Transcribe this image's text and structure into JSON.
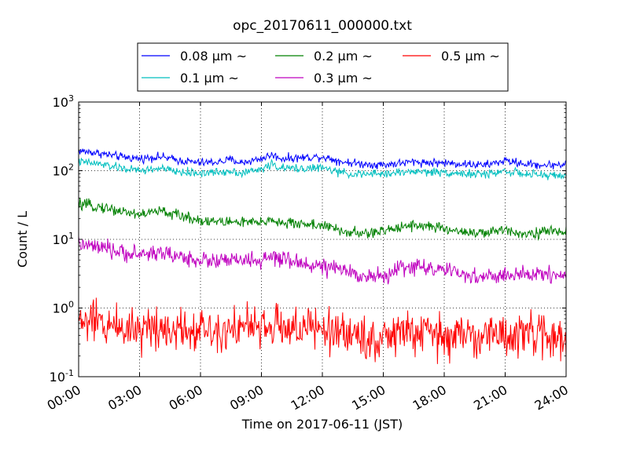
{
  "chart_data": {
    "type": "line",
    "title": "opc_20170611_000000.txt",
    "xlabel": "Time on 2017-06-11 (JST)",
    "ylabel": "Count / L",
    "x_unit": "hours",
    "xlim": [
      0,
      24
    ],
    "ylim": [
      0.1,
      1000
    ],
    "yscale": "log",
    "grid": true,
    "legend_position": "top",
    "x_ticks": [
      0,
      3,
      6,
      9,
      12,
      15,
      18,
      21,
      24
    ],
    "x_tick_labels": [
      "00:00",
      "03:00",
      "06:00",
      "09:00",
      "12:00",
      "15:00",
      "18:00",
      "21:00",
      "24:00"
    ],
    "y_ticks": [
      0.1,
      1,
      10,
      100,
      1000
    ],
    "y_tick_labels": [
      {
        "base": "10",
        "exp": "-1"
      },
      {
        "base": "10",
        "exp": "0"
      },
      {
        "base": "10",
        "exp": "1"
      },
      {
        "base": "10",
        "exp": "2"
      },
      {
        "base": "10",
        "exp": "3"
      }
    ],
    "series": [
      {
        "name": "0.08 μm ~",
        "color": "#0000ff",
        "noise": 0.03,
        "x": [
          0,
          1,
          2,
          3,
          4,
          5,
          6,
          7,
          7.5,
          8,
          9,
          9.5,
          10,
          11,
          12,
          13,
          14,
          15,
          16,
          16.5,
          17,
          18,
          19,
          20,
          21,
          22,
          23,
          24
        ],
        "y": [
          195,
          180,
          160,
          150,
          160,
          140,
          130,
          135,
          145,
          130,
          150,
          170,
          150,
          155,
          160,
          135,
          125,
          122,
          130,
          135,
          132,
          130,
          125,
          120,
          140,
          125,
          120,
          125
        ]
      },
      {
        "name": "0.1 μm ~",
        "color": "#00bfbf",
        "noise": 0.03,
        "x": [
          0,
          1,
          2,
          3,
          4,
          5,
          6,
          7,
          7.5,
          8,
          9,
          9.5,
          10,
          11,
          12,
          13,
          14,
          15,
          16,
          16.5,
          17,
          18,
          19,
          20,
          21,
          22,
          23,
          24
        ],
        "y": [
          135,
          125,
          110,
          100,
          108,
          95,
          92,
          95,
          100,
          92,
          105,
          125,
          108,
          108,
          110,
          92,
          88,
          90,
          95,
          98,
          96,
          95,
          90,
          88,
          100,
          88,
          86,
          85
        ]
      },
      {
        "name": "0.2 μm ~",
        "color": "#008000",
        "noise": 0.04,
        "x": [
          0,
          1,
          2,
          3,
          4,
          5,
          6,
          7,
          8,
          9,
          9.5,
          10,
          11,
          12,
          13,
          14,
          15,
          16,
          17,
          18,
          19,
          20,
          21,
          22,
          23,
          24
        ],
        "y": [
          32,
          30,
          26,
          23,
          26,
          22,
          19,
          18,
          18,
          17,
          20,
          17,
          17,
          16,
          13,
          12,
          13,
          16,
          16,
          14,
          13,
          12,
          14,
          12,
          13,
          13
        ]
      },
      {
        "name": "0.3 μm ~",
        "color": "#bf00bf",
        "noise": 0.06,
        "x": [
          0,
          1,
          2,
          3,
          4,
          5,
          6,
          7,
          8,
          9,
          9.5,
          10,
          11,
          12,
          13,
          14,
          15,
          16,
          17,
          18,
          19,
          20,
          21,
          22,
          23,
          24
        ],
        "y": [
          8.5,
          7.5,
          6.5,
          6,
          6.5,
          5.5,
          5,
          4.8,
          5,
          4.8,
          5.5,
          5,
          4.5,
          4,
          3.5,
          3,
          2.8,
          4,
          4,
          3.5,
          3,
          2.8,
          3,
          3,
          3.2,
          3
        ]
      },
      {
        "name": "0.5 μm ~",
        "color": "#ff0000",
        "noise": 0.16,
        "x": [
          0,
          1,
          2,
          3,
          4,
          5,
          6,
          7,
          8,
          9,
          10,
          11,
          12,
          13,
          14,
          15,
          16,
          17,
          18,
          19,
          20,
          21,
          22,
          23,
          24
        ],
        "y": [
          0.65,
          0.6,
          0.55,
          0.5,
          0.55,
          0.5,
          0.5,
          0.5,
          0.55,
          0.5,
          0.55,
          0.5,
          0.48,
          0.45,
          0.38,
          0.35,
          0.45,
          0.42,
          0.38,
          0.4,
          0.4,
          0.42,
          0.4,
          0.4,
          0.38
        ]
      }
    ]
  }
}
